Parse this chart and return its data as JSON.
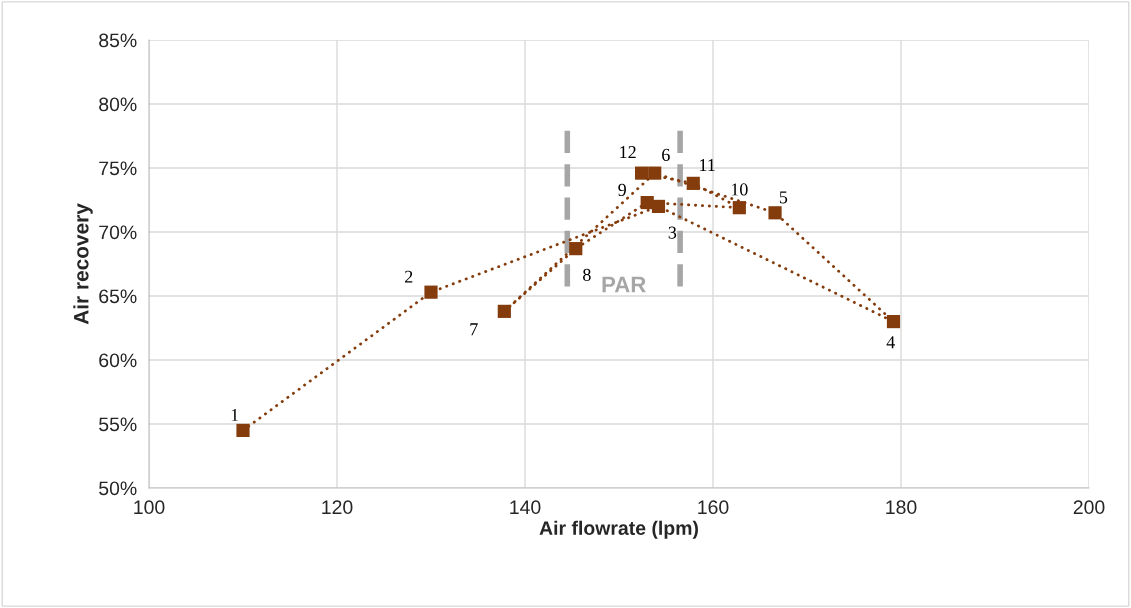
{
  "chart_data": {
    "type": "line",
    "xlabel": "Air flowrate (lpm)",
    "ylabel": "Air recovery",
    "series": [
      {
        "color": "#843c0c",
        "x": [
          110.0,
          130.0,
          154.2,
          179.2,
          166.6,
          153.8,
          137.8,
          145.4,
          153.0,
          162.8,
          157.9,
          152.4
        ],
        "values": [
          54.5,
          65.3,
          72.0,
          63.0,
          71.5,
          74.6,
          63.8,
          68.7,
          72.3,
          71.9,
          73.8,
          74.6
        ]
      }
    ],
    "marker": "square",
    "line_style": "dotted",
    "xlim": [
      100,
      200
    ],
    "xticks": [
      100,
      120,
      140,
      160,
      180,
      200
    ],
    "ylim": [
      50,
      85
    ],
    "yticks": [
      {
        "value": 50,
        "label": "50%"
      },
      {
        "value": 55,
        "label": "55%"
      },
      {
        "value": 60,
        "label": "60%"
      },
      {
        "value": 65,
        "label": "65%"
      },
      {
        "value": 70,
        "label": "70%"
      },
      {
        "value": 75,
        "label": "75%"
      },
      {
        "value": 80,
        "label": "80%"
      },
      {
        "value": 85,
        "label": "85%"
      }
    ],
    "grid": true,
    "ref_lines": [
      {
        "axis": "x",
        "value": 144.5,
        "color": "#a6a6a6",
        "line_style": "dashed"
      },
      {
        "axis": "x",
        "value": 156.5,
        "color": "#a6a6a6",
        "line_style": "dashed"
      }
    ],
    "annotations": [
      {
        "text": "1",
        "x": 110.0,
        "y": 54.5
      },
      {
        "text": "2",
        "x": 130.0,
        "y": 65.3
      },
      {
        "text": "3",
        "x": 154.2,
        "y": 72.0
      },
      {
        "text": "4",
        "x": 179.2,
        "y": 63.0
      },
      {
        "text": "5",
        "x": 166.6,
        "y": 71.5
      },
      {
        "text": "6",
        "x": 153.8,
        "y": 74.6
      },
      {
        "text": "7",
        "x": 137.8,
        "y": 63.8
      },
      {
        "text": "8",
        "x": 145.4,
        "y": 68.7
      },
      {
        "text": "9",
        "x": 153.0,
        "y": 72.3
      },
      {
        "text": "10",
        "x": 162.8,
        "y": 71.9
      },
      {
        "text": "11",
        "x": 157.9,
        "y": 73.8
      },
      {
        "text": "12",
        "x": 152.4,
        "y": 74.6
      },
      "PAR"
    ]
  }
}
